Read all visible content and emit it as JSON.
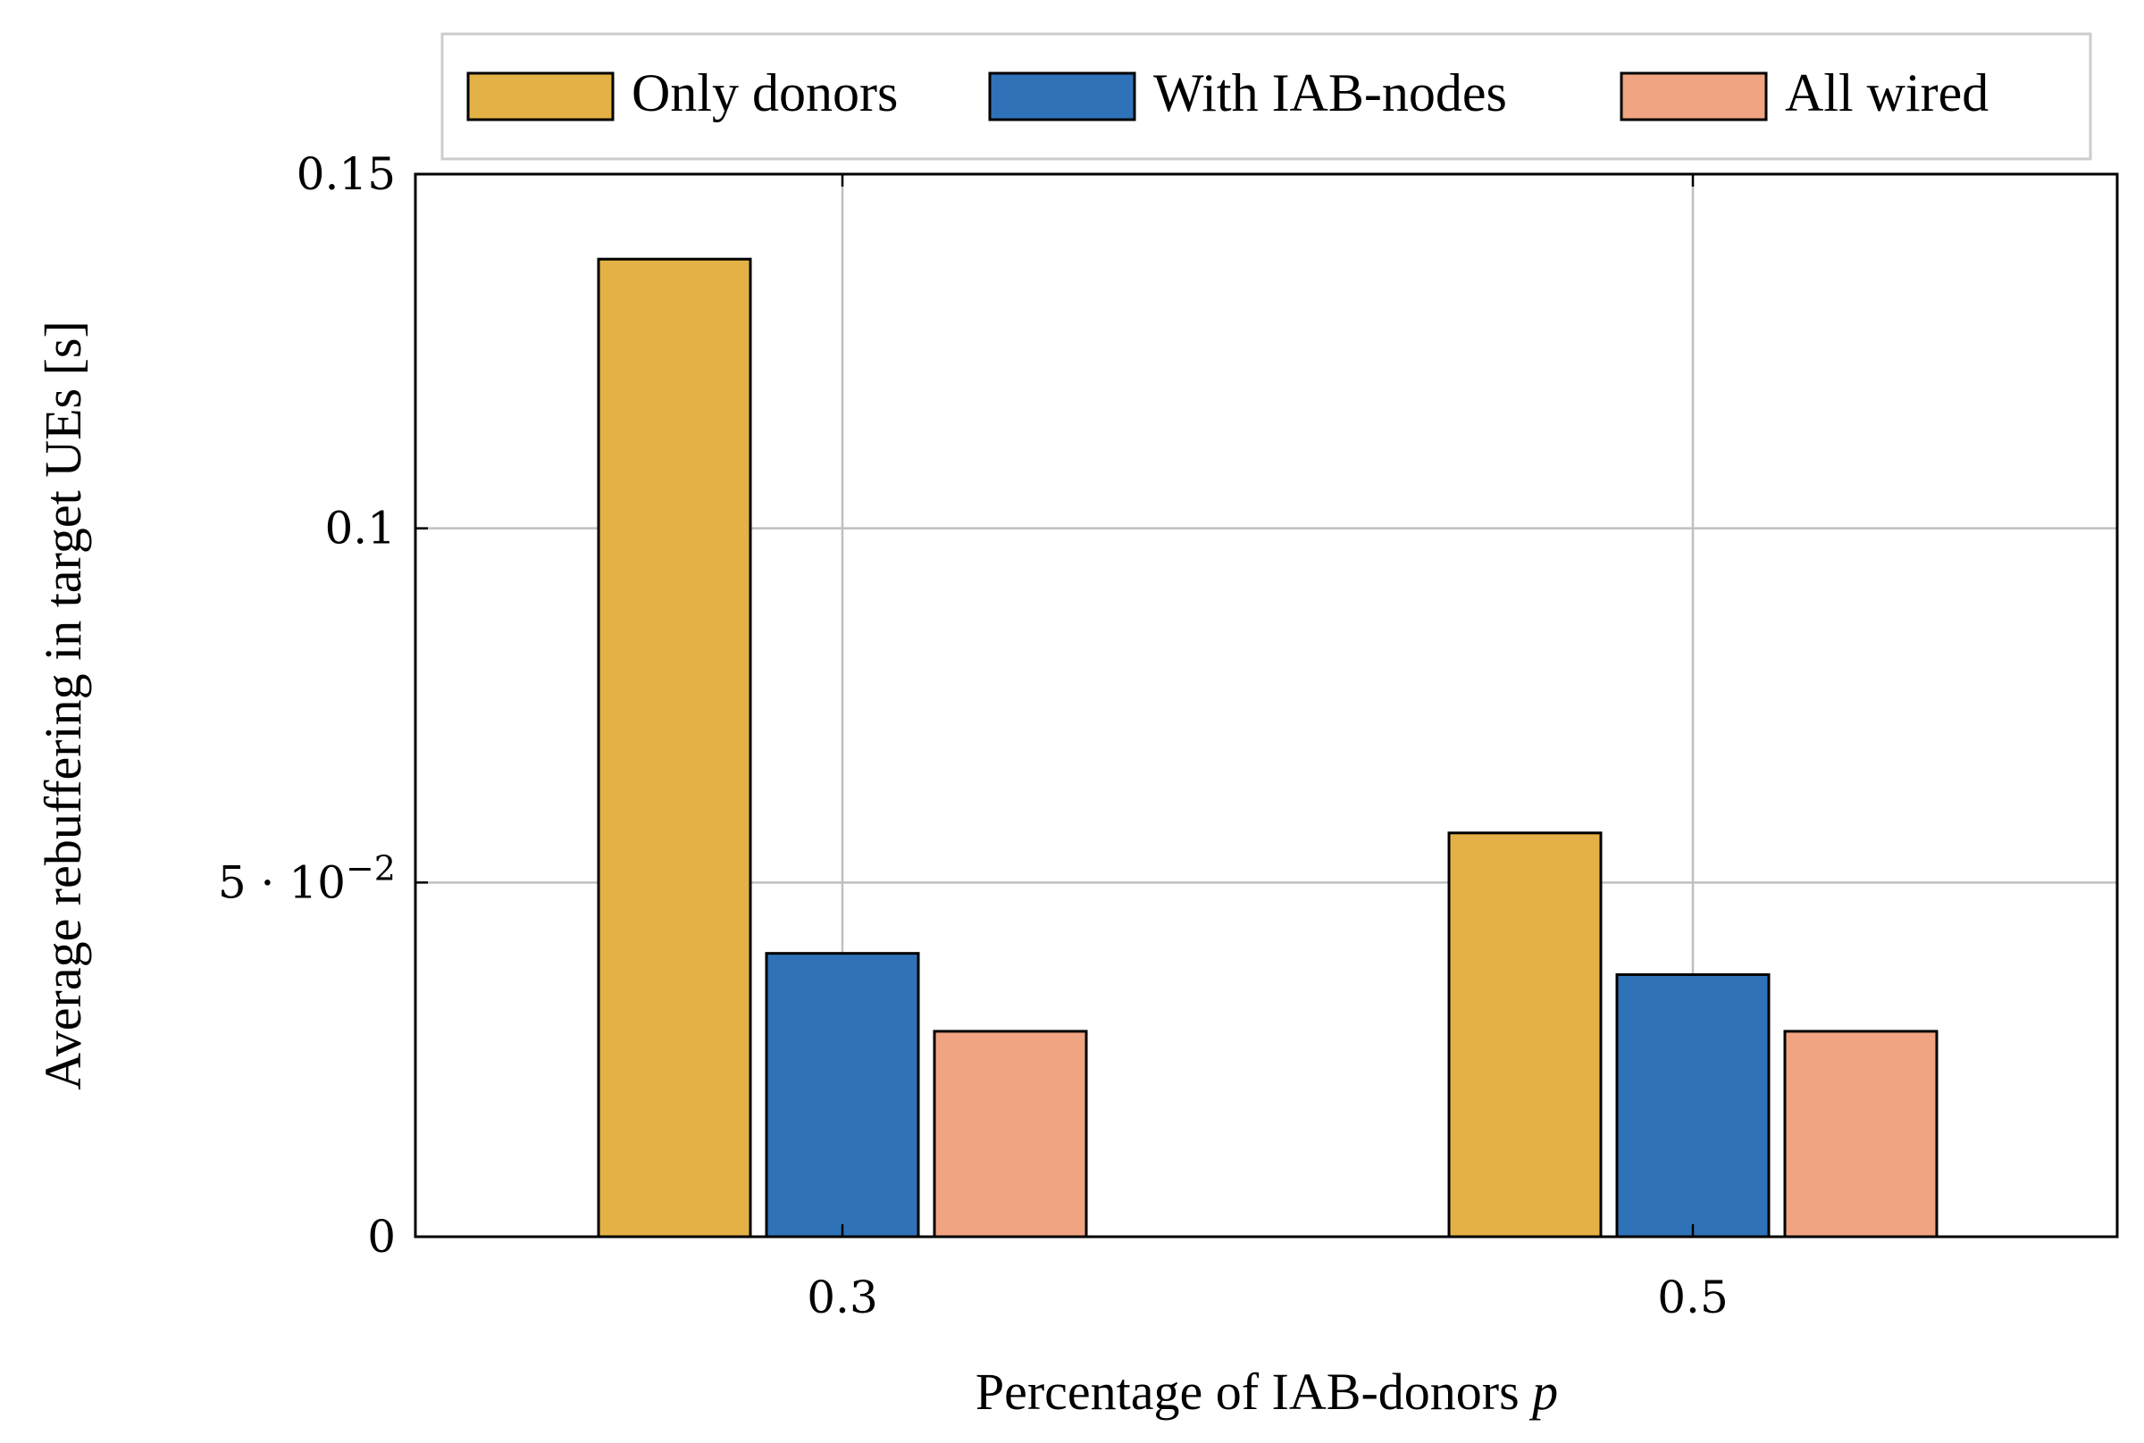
{
  "chart_data": {
    "type": "bar",
    "title": "",
    "xlabel": "Percentage of IAB-donors",
    "xlabel_var": "p",
    "ylabel": "Average rebuffering in target UEs [s]",
    "categories": [
      "0.3",
      "0.5"
    ],
    "ylim": [
      0,
      0.15
    ],
    "yticks": [
      {
        "value": 0,
        "label": "0"
      },
      {
        "value": 0.05,
        "label": "5 · 10",
        "exp": "−2"
      },
      {
        "value": 0.1,
        "label": "0.1"
      },
      {
        "value": 0.15,
        "label": "0.15"
      }
    ],
    "grid": true,
    "legend_position": "top-center",
    "series": [
      {
        "name": "Only donors",
        "color": "#E3B145",
        "values": [
          0.138,
          0.057
        ]
      },
      {
        "name": "With IAB-nodes",
        "color": "#2F72B8",
        "values": [
          0.04,
          0.037
        ]
      },
      {
        "name": "All wired",
        "color": "#F0A481",
        "values": [
          0.029,
          0.029
        ]
      }
    ]
  }
}
